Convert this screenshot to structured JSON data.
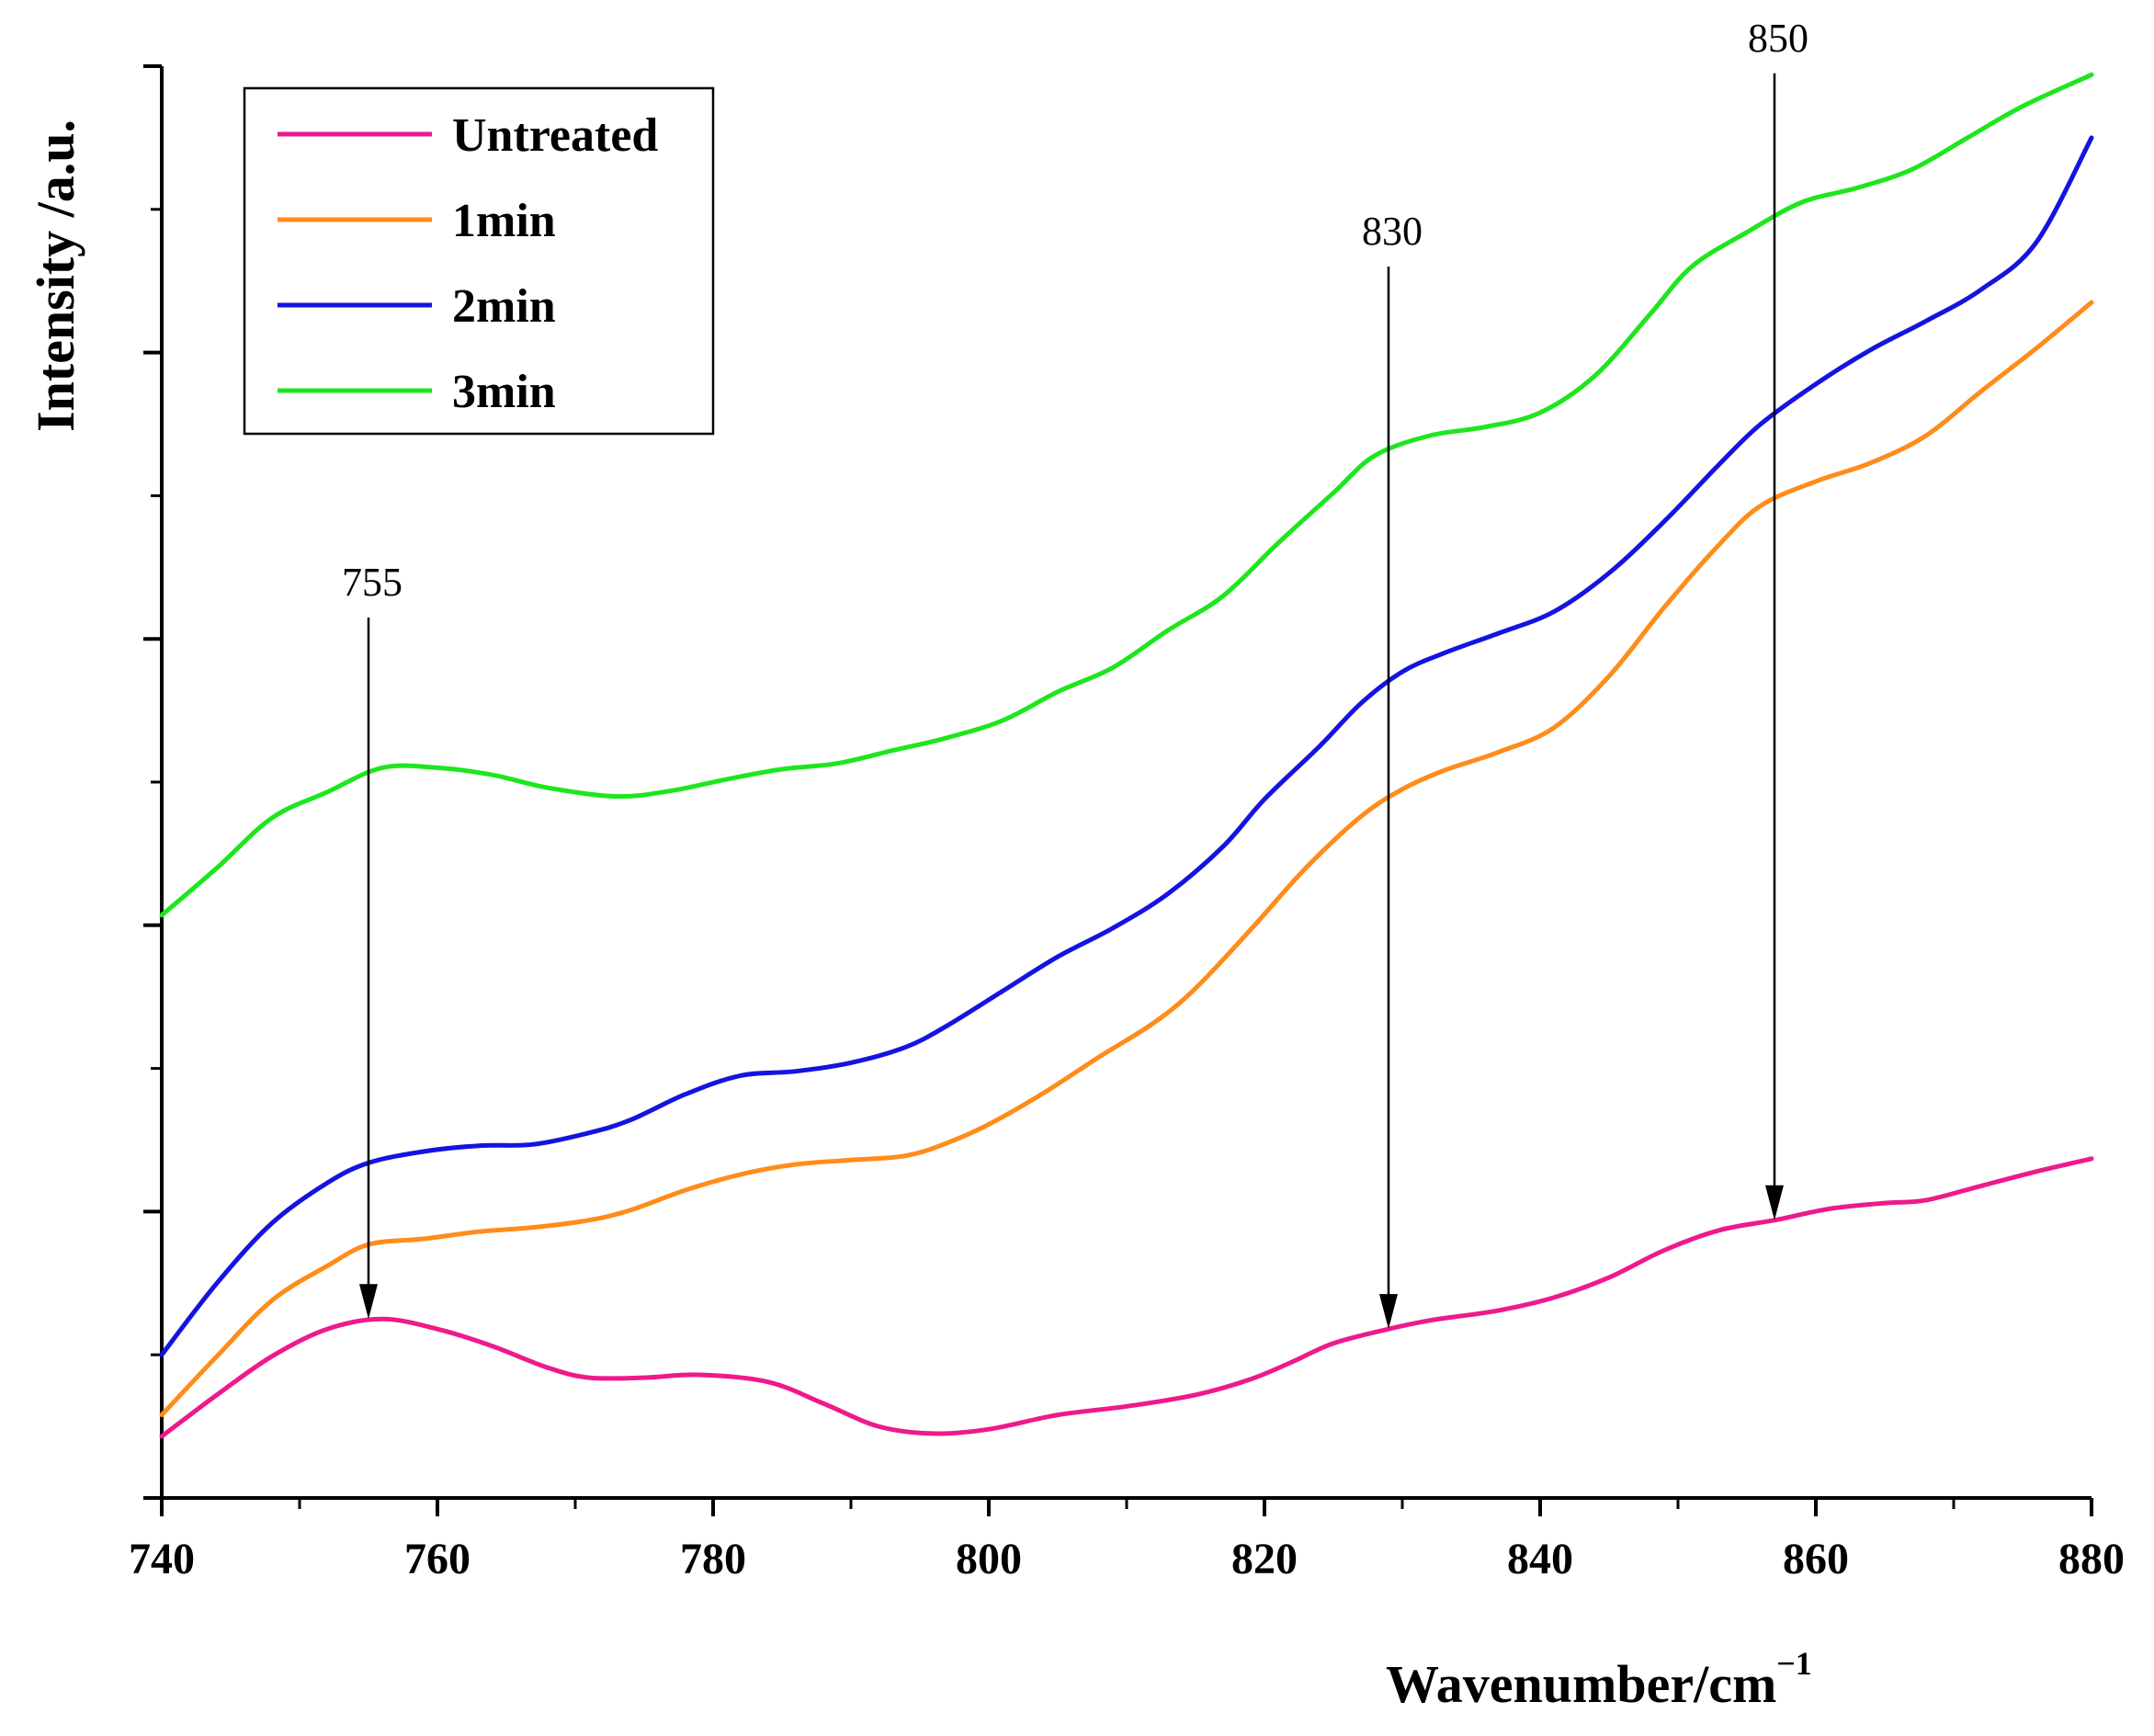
{
  "chart_data": {
    "type": "line",
    "title": "",
    "xlabel": "Wavenumber/cm",
    "xlabel_superscript": "−1",
    "ylabel": "Intensity /a.u.",
    "xlim": [
      740,
      880
    ],
    "ylim": [
      0,
      10
    ],
    "x_ticks": [
      740,
      760,
      780,
      800,
      820,
      840,
      860,
      880
    ],
    "x_minor_step": 10,
    "y_ticks": [
      0,
      1,
      2,
      3,
      4,
      5,
      6,
      7,
      8,
      9,
      10
    ],
    "y_tick_labels_shown": false,
    "grid": false,
    "legend_position": "top-left",
    "series": [
      {
        "name": "Untreated",
        "color": "#ee1a8c",
        "points": [
          [
            740,
            0.43
          ],
          [
            744,
            0.72
          ],
          [
            748,
            0.99
          ],
          [
            752,
            1.18
          ],
          [
            756,
            1.25
          ],
          [
            760,
            1.18
          ],
          [
            764,
            1.06
          ],
          [
            768,
            0.91
          ],
          [
            771,
            0.84
          ],
          [
            775,
            0.84
          ],
          [
            779,
            0.86
          ],
          [
            784,
            0.81
          ],
          [
            788,
            0.66
          ],
          [
            792,
            0.5
          ],
          [
            796,
            0.45
          ],
          [
            800,
            0.48
          ],
          [
            805,
            0.58
          ],
          [
            810,
            0.64
          ],
          [
            815,
            0.72
          ],
          [
            819,
            0.83
          ],
          [
            822,
            0.95
          ],
          [
            825,
            1.08
          ],
          [
            829,
            1.18
          ],
          [
            832,
            1.24
          ],
          [
            837,
            1.31
          ],
          [
            841,
            1.4
          ],
          [
            845,
            1.54
          ],
          [
            849,
            1.73
          ],
          [
            853,
            1.87
          ],
          [
            857,
            1.94
          ],
          [
            861,
            2.02
          ],
          [
            865,
            2.06
          ],
          [
            868,
            2.08
          ],
          [
            872,
            2.18
          ],
          [
            876,
            2.28
          ],
          [
            880,
            2.37
          ]
        ]
      },
      {
        "name": "1min",
        "color": "#ff8c1a",
        "points": [
          [
            740,
            0.58
          ],
          [
            744,
            0.99
          ],
          [
            748,
            1.38
          ],
          [
            752,
            1.62
          ],
          [
            755,
            1.77
          ],
          [
            759,
            1.81
          ],
          [
            763,
            1.86
          ],
          [
            767,
            1.89
          ],
          [
            771,
            1.94
          ],
          [
            774,
            2.01
          ],
          [
            778,
            2.15
          ],
          [
            782,
            2.26
          ],
          [
            786,
            2.33
          ],
          [
            790,
            2.36
          ],
          [
            794,
            2.39
          ],
          [
            797,
            2.48
          ],
          [
            800,
            2.61
          ],
          [
            804,
            2.83
          ],
          [
            808,
            3.08
          ],
          [
            812,
            3.32
          ],
          [
            815,
            3.56
          ],
          [
            819,
            3.97
          ],
          [
            823,
            4.4
          ],
          [
            827,
            4.76
          ],
          [
            830,
            4.95
          ],
          [
            833,
            5.08
          ],
          [
            837,
            5.21
          ],
          [
            841,
            5.38
          ],
          [
            845,
            5.74
          ],
          [
            849,
            6.22
          ],
          [
            853,
            6.66
          ],
          [
            856,
            6.93
          ],
          [
            860,
            7.1
          ],
          [
            864,
            7.23
          ],
          [
            868,
            7.42
          ],
          [
            872,
            7.73
          ],
          [
            876,
            8.03
          ],
          [
            880,
            8.35
          ]
        ]
      },
      {
        "name": "2min",
        "color": "#1414e0",
        "points": [
          [
            740,
            1.0
          ],
          [
            744,
            1.5
          ],
          [
            748,
            1.92
          ],
          [
            752,
            2.2
          ],
          [
            755,
            2.34
          ],
          [
            759,
            2.42
          ],
          [
            763,
            2.46
          ],
          [
            767,
            2.47
          ],
          [
            771,
            2.55
          ],
          [
            774,
            2.64
          ],
          [
            778,
            2.82
          ],
          [
            782,
            2.95
          ],
          [
            786,
            2.98
          ],
          [
            790,
            3.04
          ],
          [
            794,
            3.15
          ],
          [
            797,
            3.3
          ],
          [
            801,
            3.54
          ],
          [
            805,
            3.78
          ],
          [
            809,
            3.98
          ],
          [
            813,
            4.22
          ],
          [
            817,
            4.55
          ],
          [
            820,
            4.88
          ],
          [
            824,
            5.25
          ],
          [
            827,
            5.55
          ],
          [
            830,
            5.77
          ],
          [
            833,
            5.9
          ],
          [
            837,
            6.04
          ],
          [
            841,
            6.19
          ],
          [
            845,
            6.46
          ],
          [
            849,
            6.82
          ],
          [
            853,
            7.22
          ],
          [
            856,
            7.5
          ],
          [
            860,
            7.78
          ],
          [
            864,
            8.02
          ],
          [
            868,
            8.22
          ],
          [
            872,
            8.44
          ],
          [
            876,
            8.77
          ],
          [
            880,
            9.5
          ]
        ]
      },
      {
        "name": "3min",
        "color": "#1ee61e",
        "points": [
          [
            740,
            4.07
          ],
          [
            744,
            4.4
          ],
          [
            748,
            4.75
          ],
          [
            752,
            4.93
          ],
          [
            756,
            5.1
          ],
          [
            760,
            5.1
          ],
          [
            764,
            5.05
          ],
          [
            768,
            4.96
          ],
          [
            773,
            4.9
          ],
          [
            777,
            4.94
          ],
          [
            781,
            5.02
          ],
          [
            785,
            5.09
          ],
          [
            789,
            5.13
          ],
          [
            793,
            5.22
          ],
          [
            797,
            5.31
          ],
          [
            801,
            5.43
          ],
          [
            805,
            5.63
          ],
          [
            809,
            5.8
          ],
          [
            813,
            6.06
          ],
          [
            817,
            6.3
          ],
          [
            821,
            6.67
          ],
          [
            825,
            7.02
          ],
          [
            828,
            7.28
          ],
          [
            832,
            7.42
          ],
          [
            836,
            7.48
          ],
          [
            840,
            7.58
          ],
          [
            844,
            7.84
          ],
          [
            848,
            8.27
          ],
          [
            851,
            8.6
          ],
          [
            855,
            8.84
          ],
          [
            859,
            9.05
          ],
          [
            863,
            9.15
          ],
          [
            867,
            9.28
          ],
          [
            871,
            9.5
          ],
          [
            875,
            9.72
          ],
          [
            880,
            9.94
          ]
        ]
      }
    ],
    "annotations": [
      {
        "label": "755",
        "x": 755,
        "tip_y": 1.25,
        "top_y": 6.15
      },
      {
        "label": "830",
        "x": 829,
        "tip_y": 1.18,
        "top_y": 8.6
      },
      {
        "label": "850",
        "x": 857,
        "tip_y": 1.94,
        "top_y": 9.95
      }
    ]
  }
}
